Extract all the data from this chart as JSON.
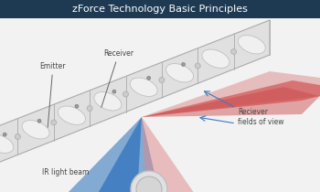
{
  "title": "zForce Technology Basic Principles",
  "title_bg_color": "#1e3a52",
  "title_text_color": "#ffffff",
  "bg_color": "#f2f2f2",
  "sensor_main_color": "#e0e0e0",
  "sensor_edge_color": "#aaaaaa",
  "sensor_top_color": "#d0d0d0",
  "sensor_seg_color": "#f0f0f0",
  "sensor_seg_edge": "#c0c0c0",
  "sensor_connector_color": "#c8c8c8",
  "blue_beam_color": "#3a7abf",
  "red_beam_color": "#cc4444",
  "pink_beam_color": "#e08888",
  "label_emitter": "Emitter",
  "label_receiver": "Receiver",
  "label_ir": "IR light beam",
  "label_fov": "Reciever\nfields of view",
  "label_color": "#444444",
  "arrow_color": "#3a7abf",
  "dot_color": "#999999",
  "title_fontsize": 8,
  "label_fontsize": 5.5
}
